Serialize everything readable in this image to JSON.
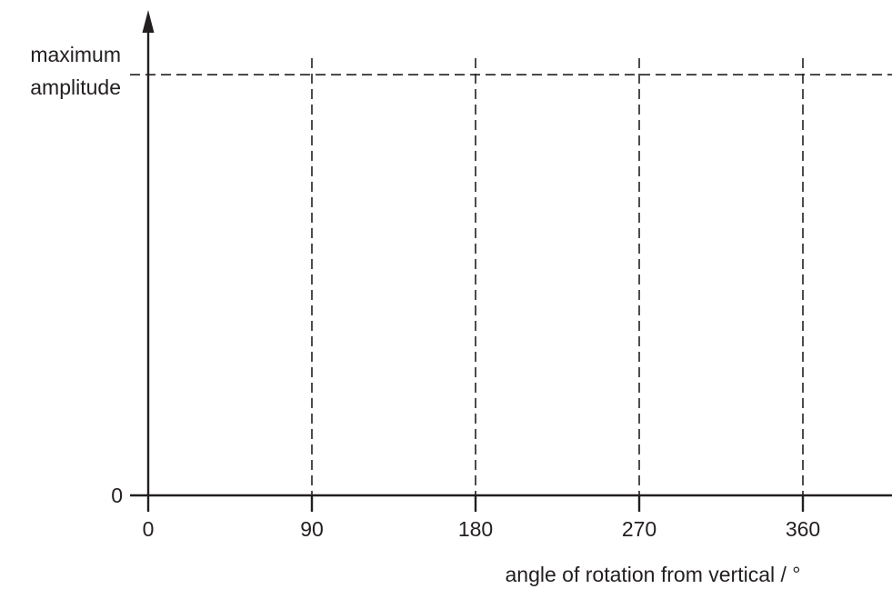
{
  "chart_data": {
    "type": "line",
    "title": "",
    "xlabel": "angle of rotation from vertical / °",
    "ylabel": "",
    "x_ticks": [
      0,
      90,
      180,
      270,
      360
    ],
    "x_tick_labels": [
      "0",
      "90",
      "180",
      "270",
      "360"
    ],
    "xlim": [
      0,
      409
    ],
    "y_tick_labels": {
      "zero": "0",
      "max_line1": "maximum",
      "max_line2": "amplitude"
    },
    "ylim": [
      0,
      1.13
    ],
    "max_amplitude": 1,
    "series": [],
    "grid": {
      "vertical_dashed_at_x": [
        90,
        180,
        270,
        360
      ],
      "horizontal_dashed_at_y": [
        1
      ]
    },
    "legend": "none",
    "colors": {
      "ink": "#231f20",
      "background": "#ffffff"
    }
  }
}
